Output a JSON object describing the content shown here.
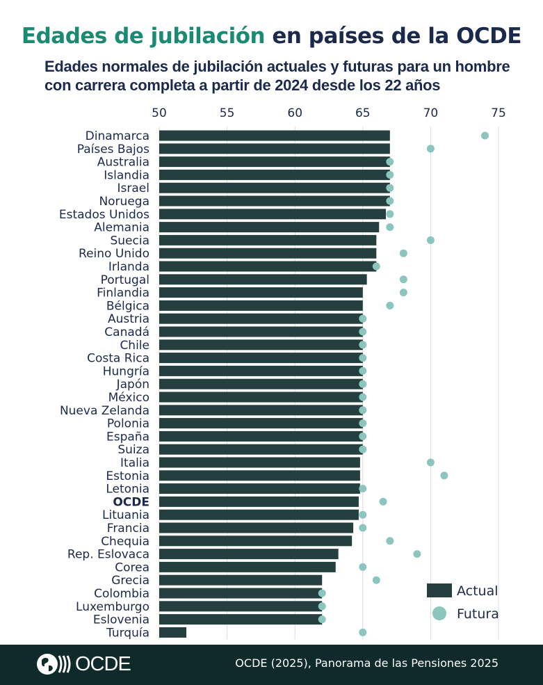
{
  "header": {
    "title_accent": "Edades de jubilación",
    "title_rest": " en países de la OCDE",
    "subtitle": "Edades normales de jubilación actuales y futuras para un hombre con carrera completa a partir de 2024 desde los 22 años"
  },
  "chart_data": {
    "type": "bar",
    "orientation": "horizontal",
    "xlim": [
      50,
      75
    ],
    "xticks": [
      50,
      55,
      60,
      65,
      70,
      75
    ],
    "grid": true,
    "legend_placement": "bottom-right",
    "categories": [
      "Dinamarca",
      "Países Bajos",
      "Australia",
      "Islandia",
      "Israel",
      "Noruega",
      "Estados Unidos",
      "Alemania",
      "Suecia",
      "Reino Unido",
      "Irlanda",
      "Portugal",
      "Finlandia",
      "Bélgica",
      "Austria",
      "Canadá",
      "Chile",
      "Costa Rica",
      "Hungría",
      "Japón",
      "México",
      "Nueva Zelanda",
      "Polonia",
      "España",
      "Suiza",
      "Italia",
      "Estonia",
      "Letonia",
      "OCDE",
      "Lituania",
      "Francia",
      "Chequia",
      "Rep. Eslovaca",
      "Corea",
      "Grecia",
      "Colombia",
      "Luxemburgo",
      "Eslovenia",
      "Turquía"
    ],
    "highlight": "OCDE",
    "series": [
      {
        "name": "Actual",
        "mark": "bar",
        "color": "#253f3f",
        "values": [
          67,
          67,
          67,
          67,
          67,
          67,
          66.7,
          66.2,
          66,
          66,
          66,
          65.3,
          65,
          65,
          65,
          65,
          65,
          65,
          65,
          65,
          65,
          65,
          65,
          65,
          65,
          64.8,
          64.8,
          64.8,
          64.7,
          64.7,
          64.3,
          64.2,
          63.2,
          63,
          62,
          62,
          62,
          62,
          52
        ]
      },
      {
        "name": "Futura",
        "mark": "dot",
        "color": "#8cc4be",
        "values": [
          74,
          70,
          67,
          67,
          67,
          67,
          67,
          67,
          70,
          68,
          66,
          68,
          68,
          67,
          65,
          65,
          65,
          65,
          65,
          65,
          65,
          65,
          65,
          65,
          65,
          70,
          71,
          65,
          66.5,
          65,
          65,
          67,
          69,
          65,
          66,
          62,
          62,
          62,
          65
        ]
      }
    ]
  },
  "footer": {
    "logo": "OCDE",
    "source": "OCDE (2025), Panorama de las Pensiones 2025"
  }
}
